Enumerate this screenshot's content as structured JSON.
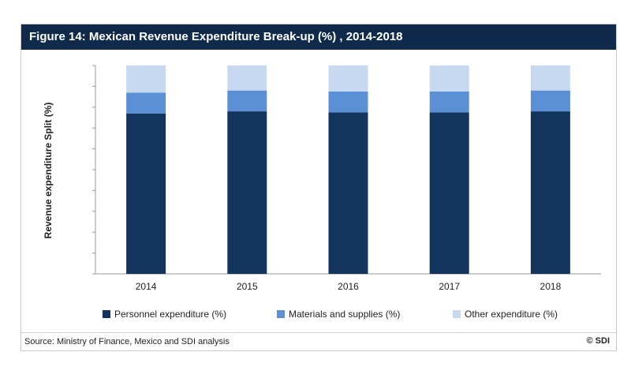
{
  "figure": {
    "title": "Figure 14: Mexican Revenue Expenditure Break-up (%) , 2014-2018",
    "source": "Source: Ministry of Finance, Mexico and SDI analysis",
    "copyright": "© SDI"
  },
  "colors": {
    "header_bg": "#0f2a4a",
    "personnel": "#13345c",
    "materials": "#5b8fd6",
    "other": "#c6d9f0"
  },
  "chart_data": {
    "type": "bar",
    "stacked": true,
    "categories": [
      "2014",
      "2015",
      "2016",
      "2017",
      "2018"
    ],
    "ylabel": "Revenue expenditure Split (%)",
    "xlabel": "",
    "ylim": [
      0,
      100
    ],
    "y_tick_labels_shown": false,
    "grid": false,
    "legend_position": "bottom",
    "series": [
      {
        "name": "Personnel expenditure (%)",
        "values": [
          77,
          78,
          77.5,
          77.5,
          78
        ]
      },
      {
        "name": "Materials and supplies (%)",
        "values": [
          10,
          10,
          10,
          10,
          10
        ]
      },
      {
        "name": "Other expenditure (%)",
        "values": [
          13,
          12,
          12.5,
          12.5,
          12
        ]
      }
    ]
  }
}
